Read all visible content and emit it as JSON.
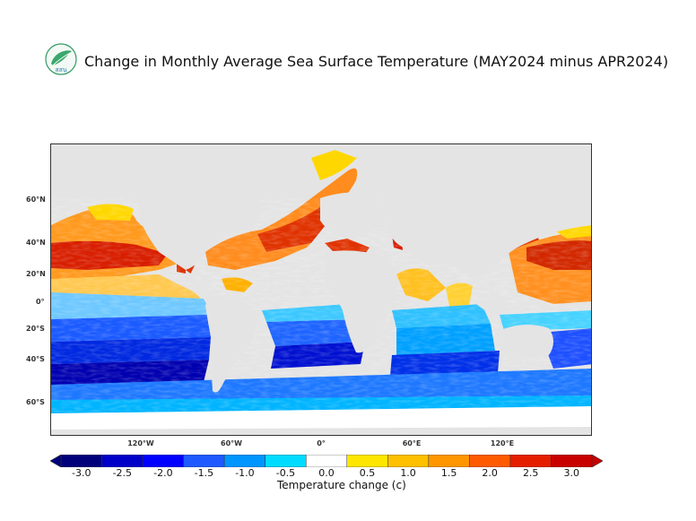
{
  "header": {
    "title": "Change in Monthly Average Sea Surface Temperature (MAY2024 minus APR2024)",
    "logo_text": "สสน"
  },
  "map": {
    "latitude_labels": [
      "60°N",
      "40°N",
      "20°N",
      "0°",
      "20°S",
      "40°S",
      "60°S"
    ],
    "longitude_labels": [
      "120°W",
      "60°W",
      "0°",
      "60°E",
      "120°E"
    ],
    "land_color": "#e4e4e4"
  },
  "colorbar": {
    "ticks": [
      "-3.0",
      "-2.5",
      "-2.0",
      "-1.5",
      "-1.0",
      "-0.5",
      "0.0",
      "0.5",
      "1.0",
      "1.5",
      "2.0",
      "2.5",
      "3.0"
    ],
    "title": "Temperature change  (c)",
    "colors": [
      "#00007a",
      "#0000c8",
      "#0000ff",
      "#1e5aff",
      "#0096ff",
      "#00dcff",
      "#ffffff",
      "#ffe600",
      "#ffc000",
      "#ff9600",
      "#ff5a00",
      "#e61e00",
      "#c80000"
    ]
  }
}
